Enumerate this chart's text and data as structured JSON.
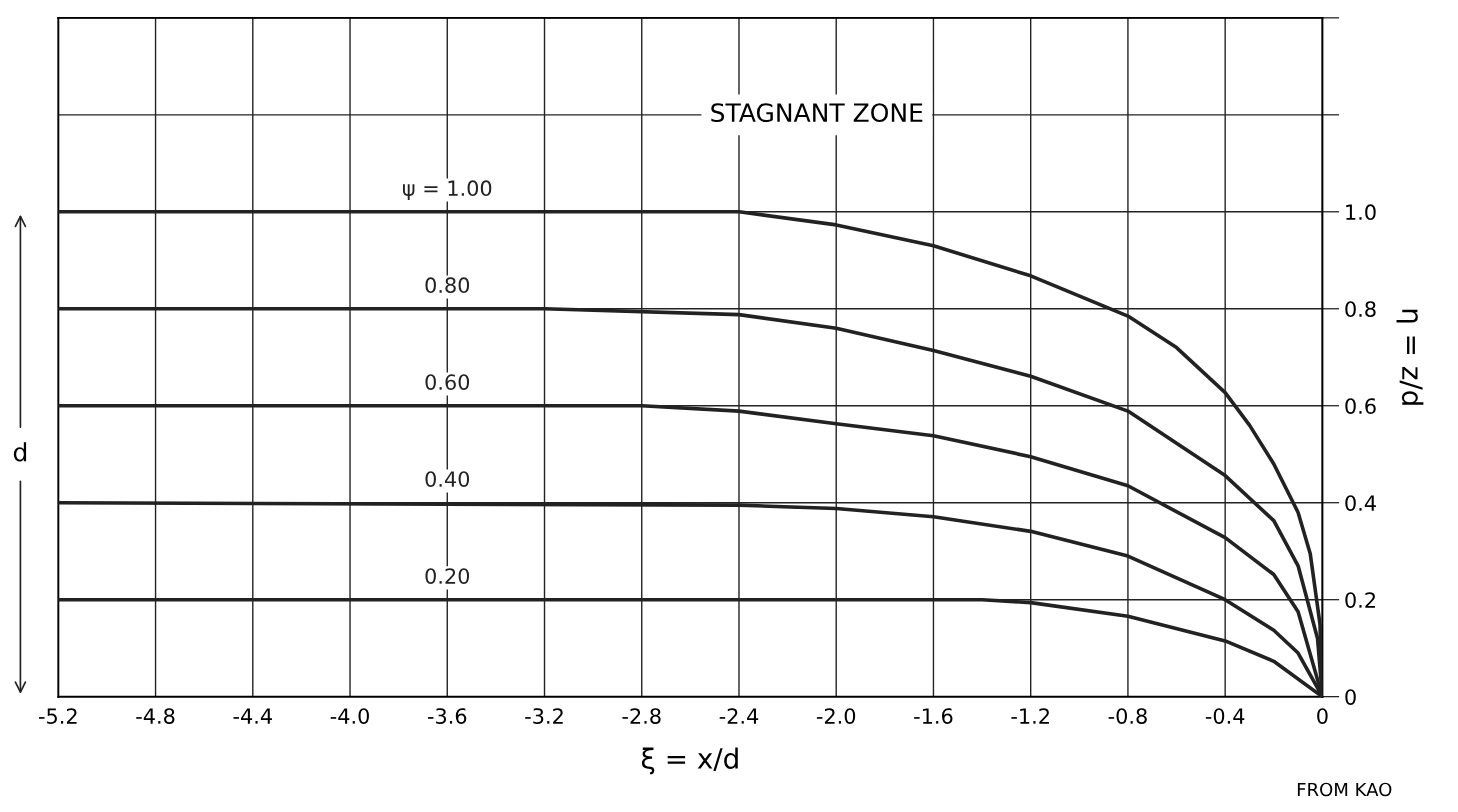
{
  "chart_data": {
    "type": "line",
    "xlabel": "ξ = x/d",
    "ylabel": "η = z/d",
    "annotations": [
      "STAGNANT ZONE",
      "d",
      "FROM KAO"
    ],
    "xlim": [
      -5.2,
      0
    ],
    "xticks": [
      -5.2,
      -4.8,
      -4.4,
      {
        "value": -4,
        "label": "-4.0"
      },
      -3.6,
      -3.2,
      -2.8,
      -2.4,
      {
        "value": -2,
        "label": "-2.0"
      },
      -1.6,
      -1.2,
      -0.8,
      -0.4,
      0
    ],
    "ylim": [
      0,
      1.4
    ],
    "yticks": [
      0,
      0.2,
      0.4,
      0.6,
      0.8,
      {
        "value": 1,
        "label": "1.0"
      },
      {
        "value": 1.2,
        "label": null
      },
      {
        "value": 1.4,
        "label": null
      }
    ],
    "grid": true,
    "marker": "none",
    "line_style": "solid",
    "series": [
      {
        "name": "ψ = 1.00",
        "color": "#222222",
        "x": [
          -5.2,
          -2.4,
          -2.0,
          -1.6,
          -1.2,
          -0.8,
          -0.6,
          -0.4,
          -0.3,
          -0.2,
          -0.1,
          -0.05,
          -0.01,
          0
        ],
        "values": [
          1.0,
          1.0,
          0.973,
          0.93,
          0.868,
          0.785,
          0.72,
          0.627,
          0.56,
          0.48,
          0.38,
          0.295,
          0.15,
          0
        ]
      },
      {
        "name": "0.80",
        "color": "#222222",
        "x": [
          -5.2,
          -3.2,
          -2.4,
          -2.0,
          -1.6,
          -1.2,
          -0.8,
          -0.4,
          -0.2,
          -0.1,
          -0.02,
          0
        ],
        "values": [
          0.8,
          0.8,
          0.788,
          0.76,
          0.714,
          0.661,
          0.589,
          0.456,
          0.363,
          0.27,
          0.12,
          0
        ]
      },
      {
        "name": "0.60",
        "color": "#222222",
        "x": [
          -5.2,
          -2.8,
          -2.4,
          -2.0,
          -1.6,
          -1.2,
          -0.8,
          -0.4,
          -0.2,
          -0.1,
          0
        ],
        "values": [
          0.6,
          0.6,
          0.589,
          0.563,
          0.538,
          0.495,
          0.435,
          0.328,
          0.252,
          0.175,
          0
        ]
      },
      {
        "name": "0.40",
        "color": "#222222",
        "x": [
          -5.2,
          -2.4,
          -2.0,
          -1.6,
          -1.2,
          -0.8,
          -0.4,
          -0.2,
          -0.1,
          0
        ],
        "values": [
          0.4,
          0.395,
          0.388,
          0.371,
          0.341,
          0.29,
          0.2,
          0.137,
          0.09,
          0
        ]
      },
      {
        "name": "0.20",
        "color": "#222222",
        "x": [
          -5.2,
          -1.4,
          -1.2,
          -0.8,
          -0.4,
          -0.2,
          0
        ],
        "values": [
          0.2,
          0.2,
          0.194,
          0.166,
          0.115,
          0.073,
          0
        ]
      }
    ]
  }
}
